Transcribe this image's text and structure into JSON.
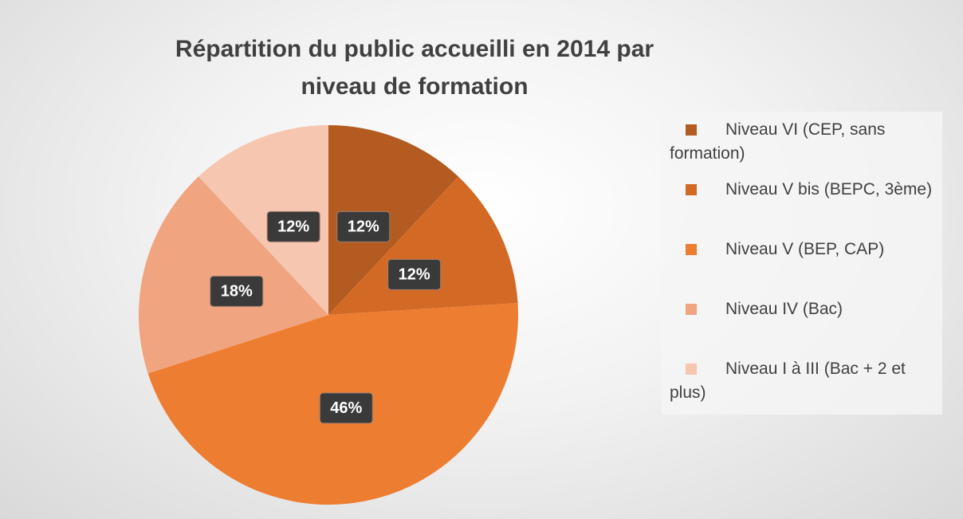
{
  "chart_data": {
    "type": "pie",
    "title": "Répartition du public accueilli en 2014 par niveau de formation",
    "categories": [
      "Niveau VI (CEP, sans formation)",
      "Niveau V bis (BEPC, 3ème)",
      "Niveau V (BEP, CAP)",
      "Niveau IV (Bac)",
      "Niveau I à III (Bac + 2 et plus)"
    ],
    "values": [
      12,
      12,
      46,
      18,
      12
    ],
    "value_labels": [
      "12%",
      "12%",
      "46%",
      "18%",
      "12%"
    ],
    "colors": [
      "#b35b20",
      "#d26a25",
      "#ed7d31",
      "#f0a47f",
      "#f6c6b1"
    ],
    "legend": "right"
  }
}
